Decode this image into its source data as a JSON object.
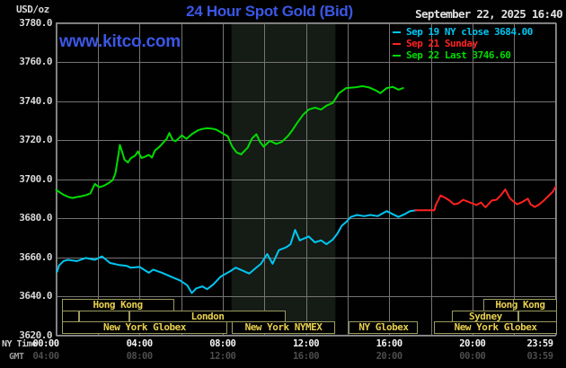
{
  "header": {
    "units_label": "USD/oz",
    "title": "24 Hour Spot Gold (Bid)",
    "datetime": "September 22, 2025 16:40",
    "watermark": "www.kitco.com"
  },
  "legend": [
    {
      "label": "Sep 19 NY close 3684.00",
      "color": "#00c6f2"
    },
    {
      "label": "Sep 21 Sunday",
      "color": "#ff2222"
    },
    {
      "label": "Sep 22 Last 3746.60",
      "color": "#00dc00"
    }
  ],
  "axes": {
    "ny_time_label": "NY Time",
    "gmt_label": "GMT",
    "ny_ticks": [
      "00:00",
      "04:00",
      "08:00",
      "12:00",
      "16:00",
      "20:00",
      "23:59"
    ],
    "gmt_ticks": [
      "04:00",
      "08:00",
      "12:00",
      "16:00",
      "20:00",
      "00:00",
      "03:59"
    ],
    "y_ticks": [
      "3780.0",
      "3760.0",
      "3740.0",
      "3720.0",
      "3700.0",
      "3680.0",
      "3660.0",
      "3640.0",
      "3620.0"
    ]
  },
  "sessions": {
    "rows": [
      {
        "boxes": [
          {
            "start": 0.26,
            "end": 5.66,
            "label": "Hong Kong"
          },
          {
            "start": 20.54,
            "end": 24.05,
            "label": "Hong Kong",
            "divider_at": 21.92
          }
        ]
      },
      {
        "boxes": [
          {
            "start": 0.26,
            "end": 1.12,
            "label": ""
          },
          {
            "start": 1.12,
            "end": 3.5,
            "label": ""
          },
          {
            "start": 3.5,
            "end": 11.05,
            "label": "London"
          },
          {
            "start": 19.03,
            "end": 22.23,
            "label": "Sydney"
          },
          {
            "start": 22.23,
            "end": 24.05,
            "label": ""
          }
        ]
      },
      {
        "boxes": [
          {
            "start": 0.26,
            "end": 8.24,
            "label": "New York Globex"
          },
          {
            "start": 8.42,
            "end": 13.42,
            "label": "New York NYMEX"
          },
          {
            "start": 14.07,
            "end": 17.39,
            "label": "NY Globex"
          },
          {
            "start": 18.17,
            "end": 24.05,
            "label": "New York Globex"
          }
        ]
      }
    ]
  },
  "chart_data": {
    "type": "line",
    "title": "24 Hour Spot Gold (Bid)",
    "xlabel": "NY Time (hours)",
    "ylabel": "USD/oz",
    "x_range": [
      0,
      24
    ],
    "y_range": [
      3620,
      3780
    ],
    "x_grid_step": 2,
    "y_grid_step": 20,
    "grid_color": "#747474",
    "border_color": "#8e8e8e",
    "session_band": {
      "hours": [
        8.42,
        13.42
      ],
      "color": "#151b15",
      "note": "New York NYMEX session highlight"
    },
    "legend_position": "top-right",
    "series": [
      {
        "name": "Sep 19 NY close",
        "close": 3684.0,
        "color": "#00c6f2",
        "points": [
          [
            0.05,
            3652.6
          ],
          [
            0.13,
            3655.6
          ],
          [
            0.35,
            3658
          ],
          [
            0.56,
            3658.6
          ],
          [
            0.99,
            3658
          ],
          [
            1.42,
            3659.6
          ],
          [
            1.86,
            3658.6
          ],
          [
            2.2,
            3660.4
          ],
          [
            2.59,
            3657
          ],
          [
            3.02,
            3656
          ],
          [
            3.37,
            3655.6
          ],
          [
            3.58,
            3654.6
          ],
          [
            4.01,
            3655
          ],
          [
            4.45,
            3652
          ],
          [
            4.66,
            3653.6
          ],
          [
            5.09,
            3652
          ],
          [
            5.52,
            3650
          ],
          [
            5.96,
            3648
          ],
          [
            6.3,
            3645.6
          ],
          [
            6.52,
            3641.6
          ],
          [
            6.73,
            3644
          ],
          [
            7.03,
            3645
          ],
          [
            7.25,
            3643.6
          ],
          [
            7.55,
            3646
          ],
          [
            7.9,
            3650
          ],
          [
            8.33,
            3652.6
          ],
          [
            8.63,
            3654.6
          ],
          [
            8.98,
            3653
          ],
          [
            9.28,
            3651.6
          ],
          [
            9.54,
            3654
          ],
          [
            9.84,
            3656.6
          ],
          [
            10.14,
            3661.6
          ],
          [
            10.4,
            3656.6
          ],
          [
            10.7,
            3663.6
          ],
          [
            11.05,
            3665
          ],
          [
            11.26,
            3666.6
          ],
          [
            11.48,
            3674
          ],
          [
            11.7,
            3668.6
          ],
          [
            12.0,
            3670
          ],
          [
            12.13,
            3670.6
          ],
          [
            12.43,
            3667.6
          ],
          [
            12.73,
            3668.6
          ],
          [
            12.99,
            3666.6
          ],
          [
            13.29,
            3669
          ],
          [
            13.51,
            3672
          ],
          [
            13.72,
            3676
          ],
          [
            13.94,
            3678
          ],
          [
            14.16,
            3680.6
          ],
          [
            14.46,
            3681.6
          ],
          [
            14.8,
            3681
          ],
          [
            15.11,
            3681.6
          ],
          [
            15.45,
            3681
          ],
          [
            15.88,
            3683.6
          ],
          [
            16.18,
            3682
          ],
          [
            16.44,
            3680.6
          ],
          [
            16.74,
            3682
          ],
          [
            17.0,
            3683.6
          ],
          [
            17.3,
            3684
          ]
        ]
      },
      {
        "name": "Sep 21 Sunday",
        "color": "#ff2222",
        "points": [
          [
            17.26,
            3684
          ],
          [
            18.17,
            3684
          ],
          [
            18.25,
            3687
          ],
          [
            18.47,
            3691.6
          ],
          [
            18.69,
            3690.4
          ],
          [
            18.9,
            3689
          ],
          [
            19.12,
            3687.1
          ],
          [
            19.33,
            3687.6
          ],
          [
            19.55,
            3689.4
          ],
          [
            19.77,
            3688.5
          ],
          [
            19.98,
            3687.6
          ],
          [
            20.2,
            3686.7
          ],
          [
            20.41,
            3688
          ],
          [
            20.63,
            3685.5
          ],
          [
            20.93,
            3689
          ],
          [
            21.15,
            3689.4
          ],
          [
            21.36,
            3691.6
          ],
          [
            21.58,
            3694.7
          ],
          [
            21.79,
            3690.4
          ],
          [
            21.92,
            3689
          ],
          [
            22.14,
            3687.1
          ],
          [
            22.35,
            3688
          ],
          [
            22.57,
            3689.4
          ],
          [
            22.66,
            3690
          ],
          [
            22.79,
            3687.1
          ],
          [
            23.0,
            3685.7
          ],
          [
            23.22,
            3687.1
          ],
          [
            23.43,
            3689
          ],
          [
            23.65,
            3691.3
          ],
          [
            23.86,
            3693.5
          ],
          [
            23.99,
            3696
          ]
        ]
      },
      {
        "name": "Sep 22 Last",
        "last": 3746.6,
        "color": "#00dc00",
        "points": [
          [
            0,
            3694.5
          ],
          [
            0.2,
            3693
          ],
          [
            0.35,
            3692
          ],
          [
            0.6,
            3690.8
          ],
          [
            0.78,
            3690.3
          ],
          [
            1.0,
            3690.8
          ],
          [
            1.21,
            3691.2
          ],
          [
            1.45,
            3691.8
          ],
          [
            1.64,
            3692.6
          ],
          [
            1.86,
            3697.5
          ],
          [
            2.07,
            3695.8
          ],
          [
            2.3,
            3696.6
          ],
          [
            2.5,
            3697.8
          ],
          [
            2.72,
            3699.5
          ],
          [
            2.85,
            3703
          ],
          [
            3.0,
            3713
          ],
          [
            3.06,
            3717.5
          ],
          [
            3.15,
            3714.6
          ],
          [
            3.28,
            3710
          ],
          [
            3.45,
            3708.5
          ],
          [
            3.58,
            3710.6
          ],
          [
            3.8,
            3712
          ],
          [
            3.93,
            3714.2
          ],
          [
            4.1,
            3710.8
          ],
          [
            4.3,
            3711.6
          ],
          [
            4.45,
            3712.4
          ],
          [
            4.6,
            3711
          ],
          [
            4.75,
            3714.6
          ],
          [
            4.95,
            3716.4
          ],
          [
            5.09,
            3718
          ],
          [
            5.31,
            3720.6
          ],
          [
            5.44,
            3723.6
          ],
          [
            5.6,
            3720
          ],
          [
            5.74,
            3719.4
          ],
          [
            5.9,
            3721
          ],
          [
            6.04,
            3722.4
          ],
          [
            6.26,
            3720.6
          ],
          [
            6.52,
            3723
          ],
          [
            6.82,
            3725
          ],
          [
            7.0,
            3725.6
          ],
          [
            7.25,
            3726
          ],
          [
            7.5,
            3725.8
          ],
          [
            7.68,
            3725.4
          ],
          [
            7.98,
            3723.6
          ],
          [
            8.24,
            3722
          ],
          [
            8.46,
            3716.6
          ],
          [
            8.67,
            3713.6
          ],
          [
            8.89,
            3712.6
          ],
          [
            9.06,
            3714.6
          ],
          [
            9.2,
            3716
          ],
          [
            9.41,
            3720.8
          ],
          [
            9.62,
            3723
          ],
          [
            9.8,
            3719
          ],
          [
            9.97,
            3716.6
          ],
          [
            10.27,
            3719.6
          ],
          [
            10.57,
            3718
          ],
          [
            10.83,
            3719
          ],
          [
            11.13,
            3722
          ],
          [
            11.35,
            3725
          ],
          [
            11.57,
            3728.6
          ],
          [
            11.87,
            3733
          ],
          [
            12.13,
            3735.6
          ],
          [
            12.43,
            3736.6
          ],
          [
            12.73,
            3735.6
          ],
          [
            12.99,
            3737.6
          ],
          [
            13.29,
            3739
          ],
          [
            13.59,
            3744
          ],
          [
            13.94,
            3746.6
          ],
          [
            14.37,
            3747
          ],
          [
            14.72,
            3747.6
          ],
          [
            15.02,
            3747
          ],
          [
            15.32,
            3745.6
          ],
          [
            15.58,
            3744
          ],
          [
            15.88,
            3746.6
          ],
          [
            16.18,
            3747.2
          ],
          [
            16.44,
            3745.8
          ],
          [
            16.67,
            3746.6
          ]
        ]
      }
    ]
  }
}
